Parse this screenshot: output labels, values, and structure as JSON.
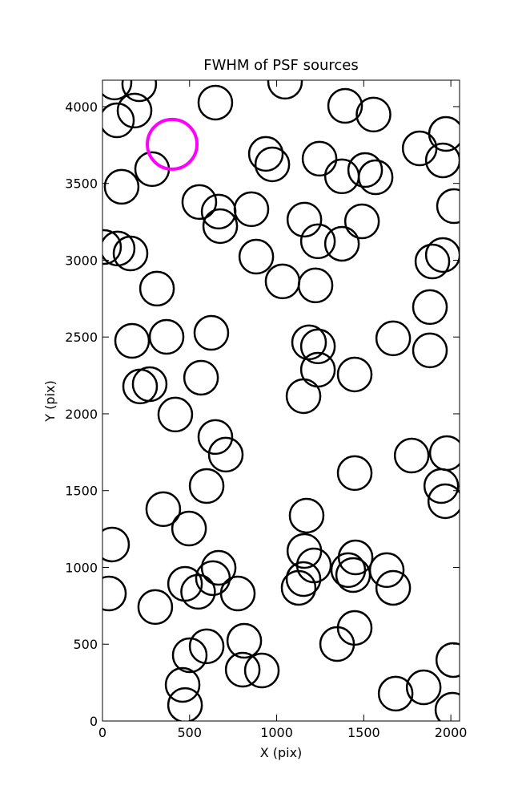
{
  "chart_data": {
    "type": "scatter",
    "title": "FWHM of PSF sources",
    "x_label": "X (pix)",
    "y_label": "Y (pix)",
    "xlim": [
      0,
      2050
    ],
    "ylim": [
      0,
      4172
    ],
    "xticks": [
      0,
      500,
      1000,
      1500,
      2000
    ],
    "yticks": [
      0,
      500,
      1000,
      1500,
      2000,
      2500,
      3000,
      3500,
      4000
    ],
    "series": [
      {
        "color": "#000000",
        "x": [
          69,
          211,
          184,
          83,
          1048,
          648,
          1393,
          1556,
          1972,
          1821,
          1954,
          938,
          975,
          1246,
          1375,
          1508,
          1568,
          285,
          110,
          556,
          667,
          676,
          855,
          1159,
          1490,
          1237,
          1375,
          2018,
          1954,
          1894,
          9,
          87,
          161,
          883,
          1034,
          1223,
          313,
          1880,
          1880,
          1669,
          170,
          368,
          625,
          1186,
          1237,
          1237,
          1448,
          1154,
          566,
          216,
          271,
          418,
          648,
          708,
          1775,
          1977,
          1448,
          1945,
          1968,
          598,
          349,
          1172,
          497,
          55,
          1159,
          1214,
          667,
          634,
          1453,
          1411,
          1439,
          1632,
          1669,
          1154,
          1126,
          474,
          549,
          777,
          37,
          303,
          1448,
          1347,
          2014,
          814,
          598,
          501,
          805,
          915,
          460,
          474,
          1683,
          1844,
          2009
        ],
        "y": [
          4157,
          4146,
          3974,
          3911,
          4162,
          4026,
          4005,
          3948,
          3822,
          3728,
          3650,
          3692,
          3624,
          3661,
          3546,
          3587,
          3540,
          3593,
          3478,
          3379,
          3316,
          3222,
          3332,
          3264,
          3253,
          3123,
          3107,
          3352,
          3034,
          2992,
          3086,
          3076,
          3044,
          3023,
          2862,
          2836,
          2815,
          2695,
          2413,
          2491,
          2475,
          2501,
          2527,
          2465,
          2439,
          2287,
          2256,
          2115,
          2235,
          2178,
          2193,
          1995,
          1849,
          1734,
          1728,
          1744,
          1614,
          1530,
          1431,
          1530,
          1379,
          1337,
          1253,
          1149,
          1107,
          1013,
          997,
          930,
          1065,
          982,
          950,
          982,
          867,
          924,
          867,
          893,
          841,
          830,
          830,
          742,
          606,
          501,
          397,
          522,
          486,
          428,
          334,
          329,
          235,
          104,
          178,
          219,
          73
        ]
      },
      {
        "color": "#ff00ff",
        "x": [
          400
        ],
        "y": [
          3755
        ]
      }
    ]
  }
}
